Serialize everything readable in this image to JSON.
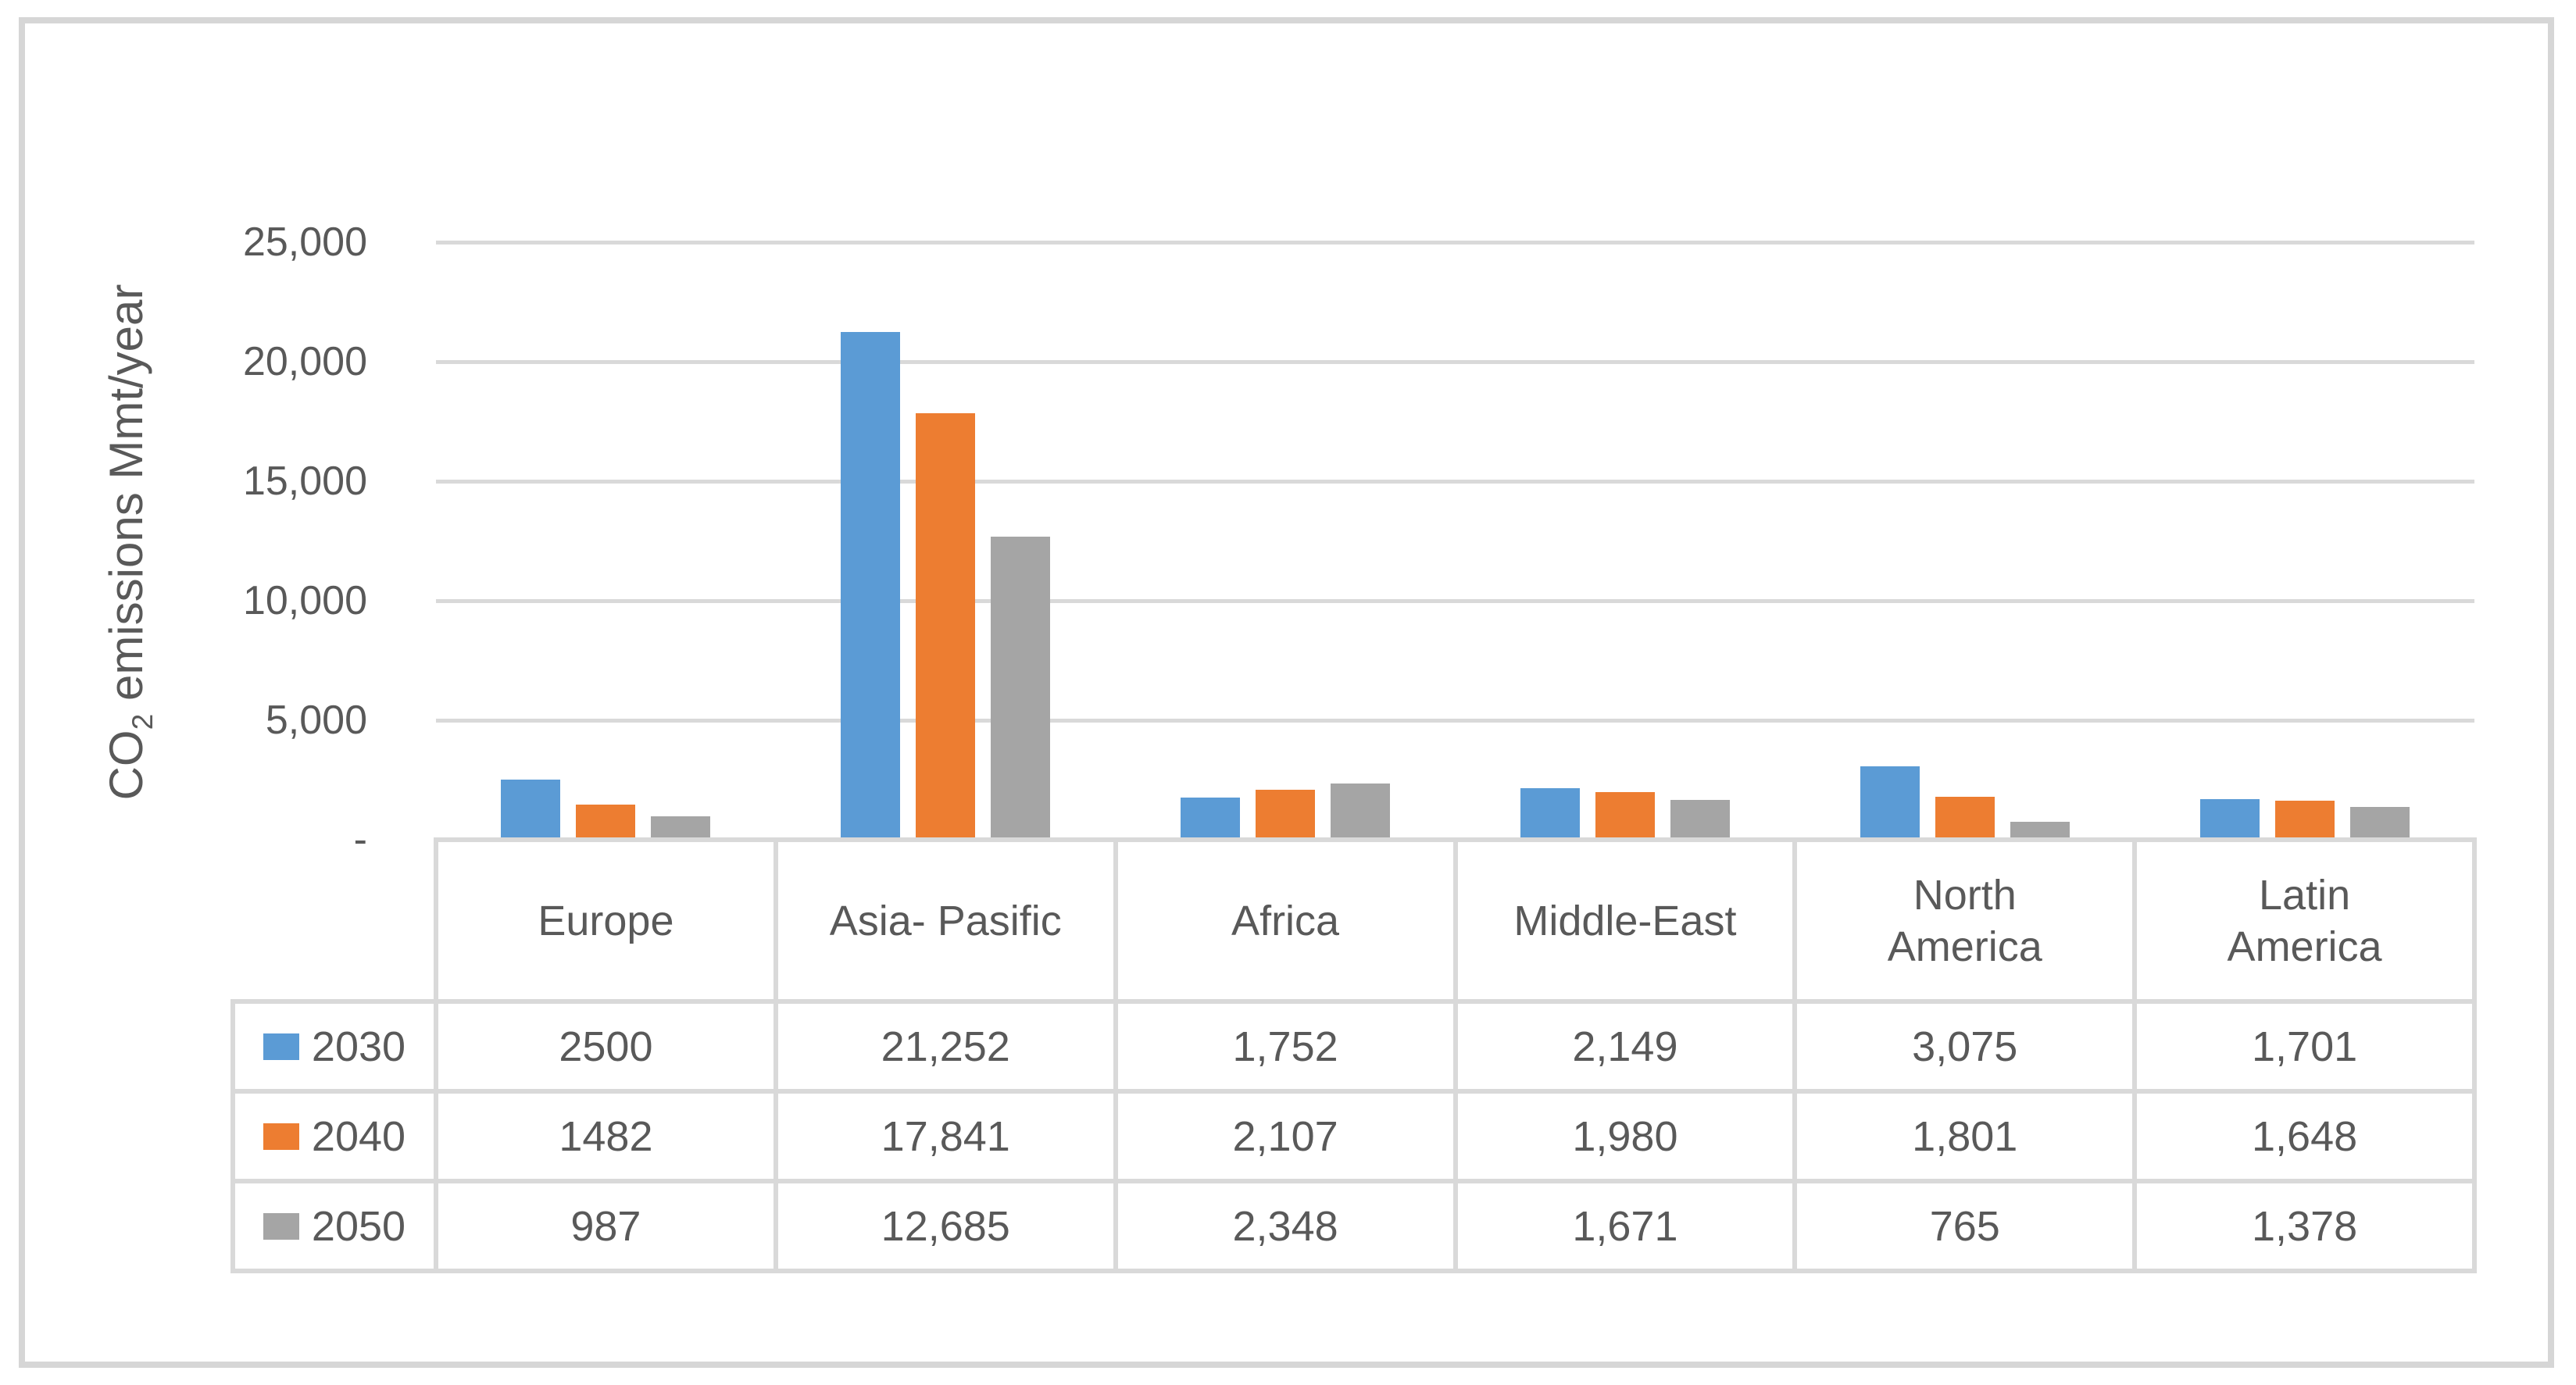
{
  "frame": {
    "background": "#FFFFFF",
    "border_color": "#D6D6D6"
  },
  "colors": {
    "gridline": "#D9D9D9",
    "table_border": "#D9D9D9",
    "text": "#595959",
    "series_2030": "#5B9BD5",
    "series_2040": "#ED7D31",
    "series_2050": "#A5A5A5"
  },
  "chart_data": {
    "type": "bar",
    "title": "",
    "grid": true,
    "data_table_shown": true,
    "legend_position": "data-table-left",
    "y_axis": {
      "title_prefix": "CO",
      "title_sub": "2",
      "title_rest": " emissions Mmt/year",
      "min": 0,
      "max": 25000,
      "gridline_interval": 5000,
      "tick_values": [
        25000,
        20000,
        15000,
        10000,
        5000,
        0
      ],
      "tick_labels": [
        "25,000",
        "20,000",
        "15,000",
        "10,000",
        "5,000",
        "-"
      ]
    },
    "categories": [
      "Europe",
      "Asia- Pasific",
      "Africa",
      "Middle-East",
      "North America",
      "Latin America"
    ],
    "category_lines": [
      [
        "Europe"
      ],
      [
        "Asia- Pasific"
      ],
      [
        "Africa"
      ],
      [
        "Middle-East"
      ],
      [
        "North",
        "America"
      ],
      [
        "Latin",
        "America"
      ]
    ],
    "series": [
      {
        "name": "2030",
        "color": "#5B9BD5",
        "values": [
          2500,
          21252,
          1752,
          2149,
          3075,
          1701
        ],
        "display": [
          "2500",
          "21,252",
          "1,752",
          "2,149",
          "3,075",
          "1,701"
        ]
      },
      {
        "name": "2040",
        "color": "#ED7D31",
        "values": [
          1482,
          17841,
          2107,
          1980,
          1801,
          1648
        ],
        "display": [
          "1482",
          "17,841",
          "2,107",
          "1,980",
          "1,801",
          "1,648"
        ]
      },
      {
        "name": "2050",
        "color": "#A5A5A5",
        "values": [
          987,
          12685,
          2348,
          1671,
          765,
          1378
        ],
        "display": [
          "987",
          "12,685",
          "2,348",
          "1,671",
          "765",
          "1,378"
        ]
      }
    ]
  }
}
